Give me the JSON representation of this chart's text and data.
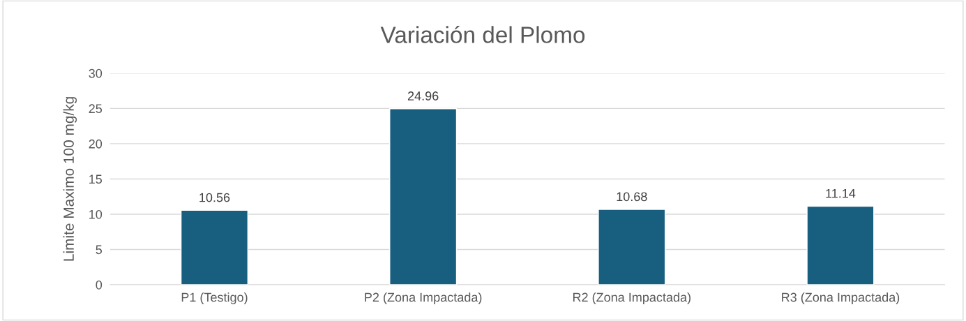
{
  "chart_data": {
    "type": "bar",
    "title": "Variación del Plomo",
    "ylabel": "Limite Maximo 100 mg/kg",
    "categories": [
      "P1 (Testigo)",
      "P2 (Zona Impactada)",
      "R2 (Zona Impactada)",
      "R3 (Zona Impactada)"
    ],
    "values": [
      10.56,
      24.96,
      10.68,
      11.14
    ],
    "color": "#175e7f",
    "ylim": [
      0,
      30
    ],
    "yticks": [
      0,
      5,
      10,
      15,
      20,
      25,
      30
    ],
    "grid": "y",
    "data_labels": true
  }
}
